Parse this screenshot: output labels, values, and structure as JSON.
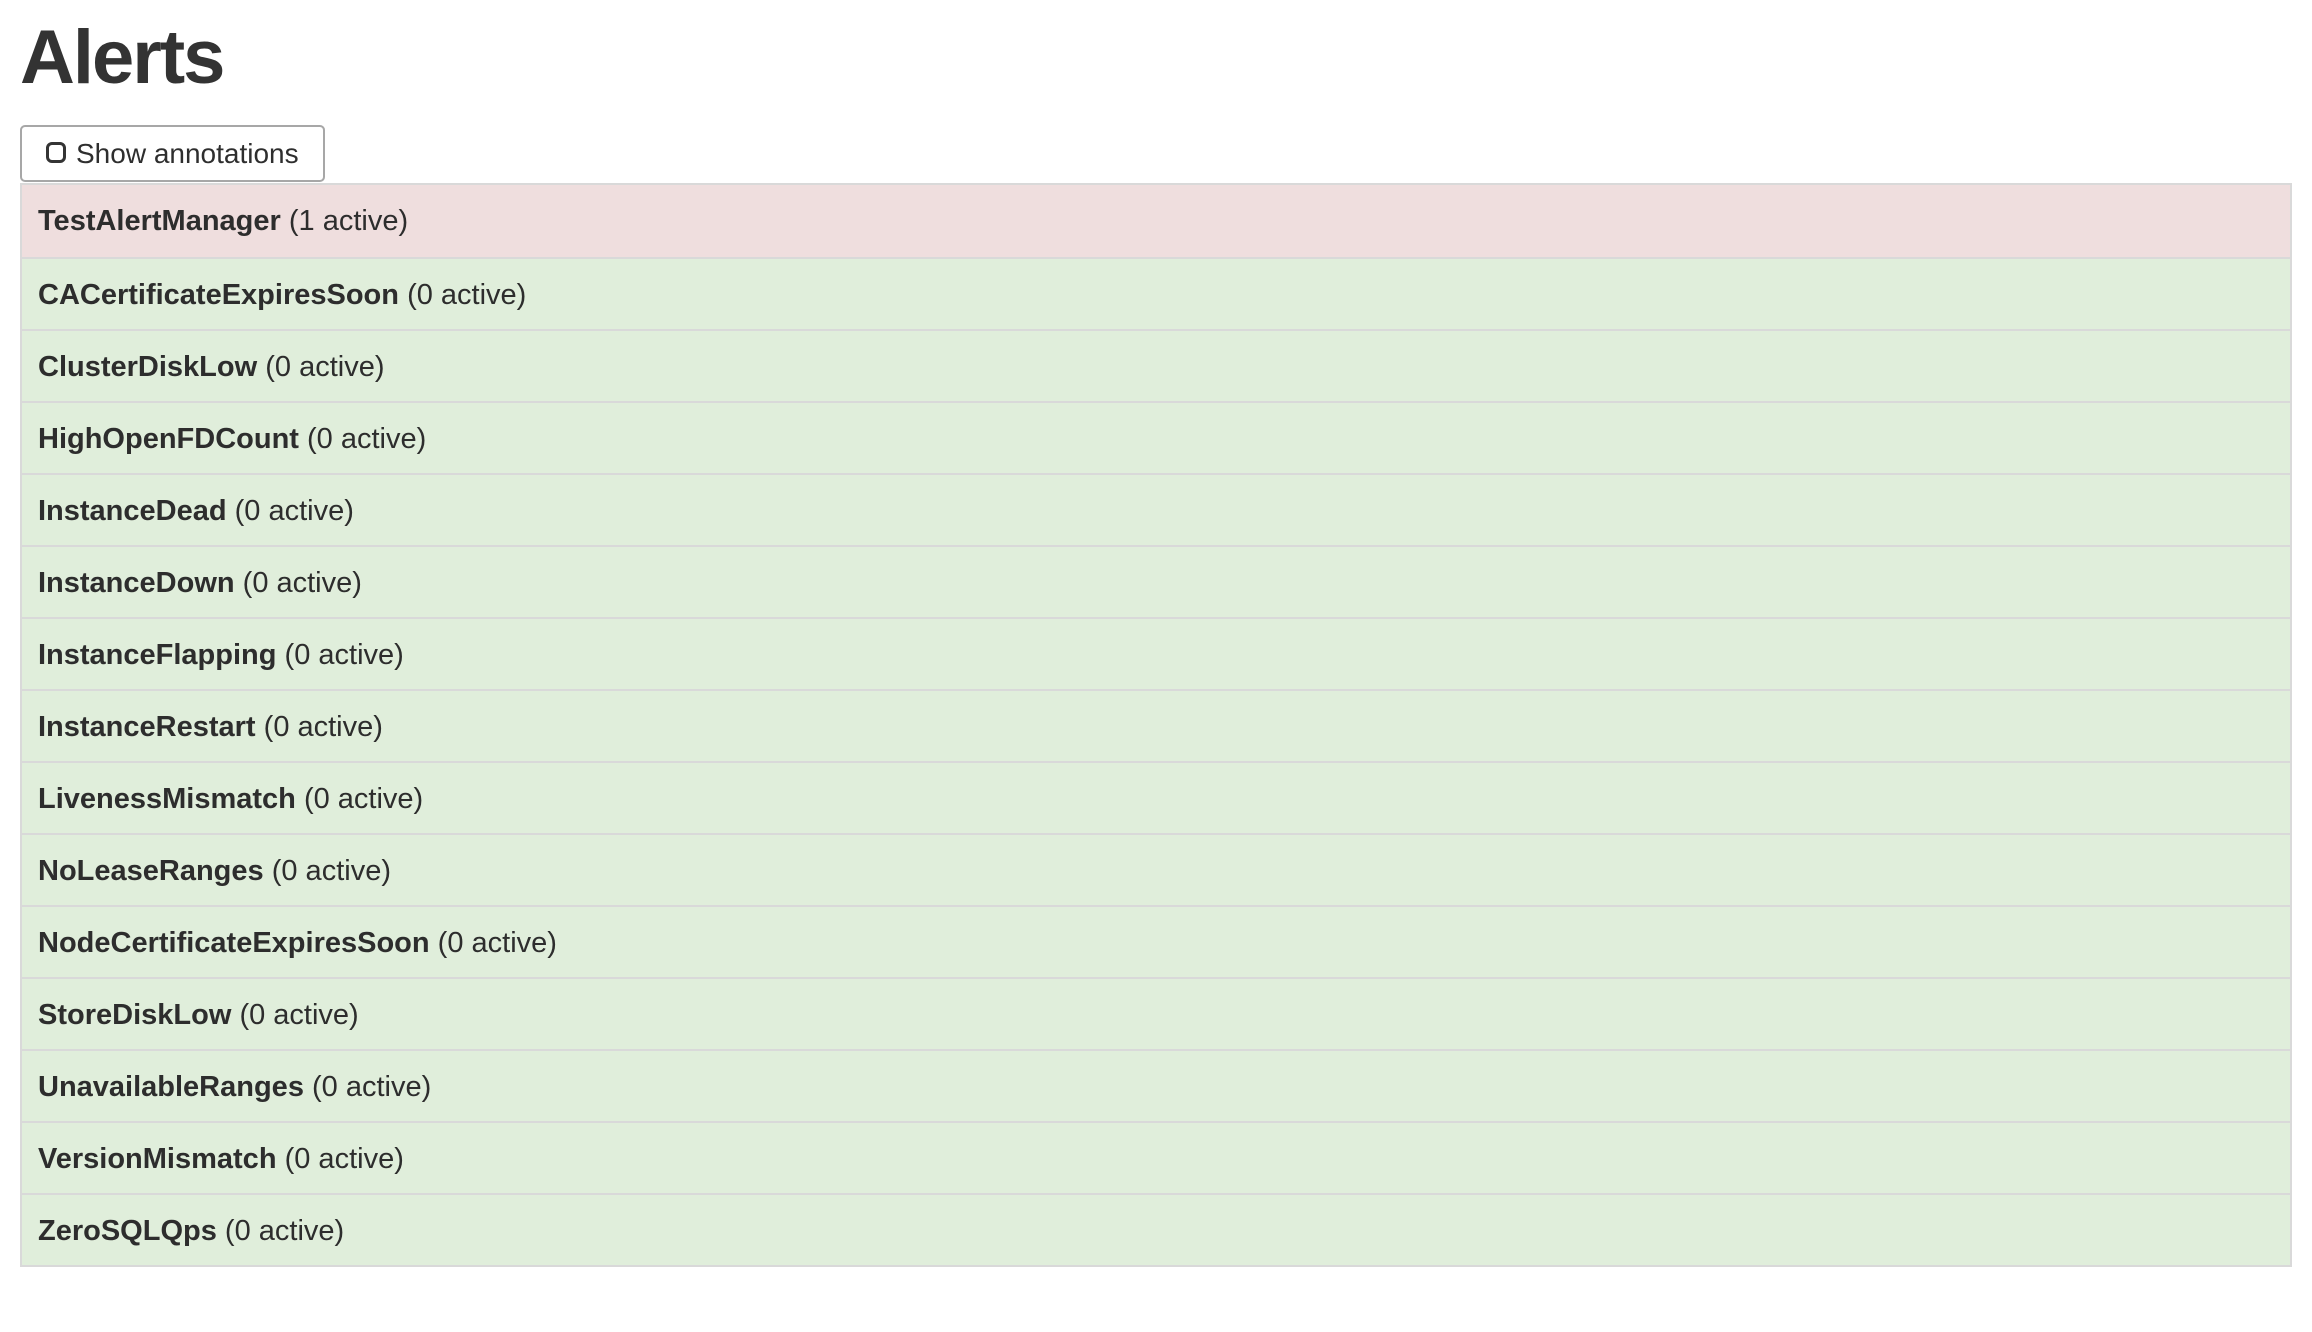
{
  "page": {
    "title": "Alerts"
  },
  "toolbar": {
    "show_annotations": {
      "label": "Show annotations",
      "checked": false
    }
  },
  "alerts": [
    {
      "name": "TestAlertManager",
      "active_count": 1,
      "count_label": "(1 active)",
      "state": "firing"
    },
    {
      "name": "CACertificateExpiresSoon",
      "active_count": 0,
      "count_label": "(0 active)",
      "state": "inactive"
    },
    {
      "name": "ClusterDiskLow",
      "active_count": 0,
      "count_label": "(0 active)",
      "state": "inactive"
    },
    {
      "name": "HighOpenFDCount",
      "active_count": 0,
      "count_label": "(0 active)",
      "state": "inactive"
    },
    {
      "name": "InstanceDead",
      "active_count": 0,
      "count_label": "(0 active)",
      "state": "inactive"
    },
    {
      "name": "InstanceDown",
      "active_count": 0,
      "count_label": "(0 active)",
      "state": "inactive"
    },
    {
      "name": "InstanceFlapping",
      "active_count": 0,
      "count_label": "(0 active)",
      "state": "inactive"
    },
    {
      "name": "InstanceRestart",
      "active_count": 0,
      "count_label": "(0 active)",
      "state": "inactive"
    },
    {
      "name": "LivenessMismatch",
      "active_count": 0,
      "count_label": "(0 active)",
      "state": "inactive"
    },
    {
      "name": "NoLeaseRanges",
      "active_count": 0,
      "count_label": "(0 active)",
      "state": "inactive"
    },
    {
      "name": "NodeCertificateExpiresSoon",
      "active_count": 0,
      "count_label": "(0 active)",
      "state": "inactive"
    },
    {
      "name": "StoreDiskLow",
      "active_count": 0,
      "count_label": "(0 active)",
      "state": "inactive"
    },
    {
      "name": "UnavailableRanges",
      "active_count": 0,
      "count_label": "(0 active)",
      "state": "inactive"
    },
    {
      "name": "VersionMismatch",
      "active_count": 0,
      "count_label": "(0 active)",
      "state": "inactive"
    },
    {
      "name": "ZeroSQLQps",
      "active_count": 0,
      "count_label": "(0 active)",
      "state": "inactive"
    }
  ],
  "colors": {
    "firing_row_bg": "#efdede",
    "inactive_row_bg": "#e0eedb",
    "table_border": "#d9d9d9",
    "text": "#2d2d2d",
    "button_border": "#a7a7a7"
  }
}
